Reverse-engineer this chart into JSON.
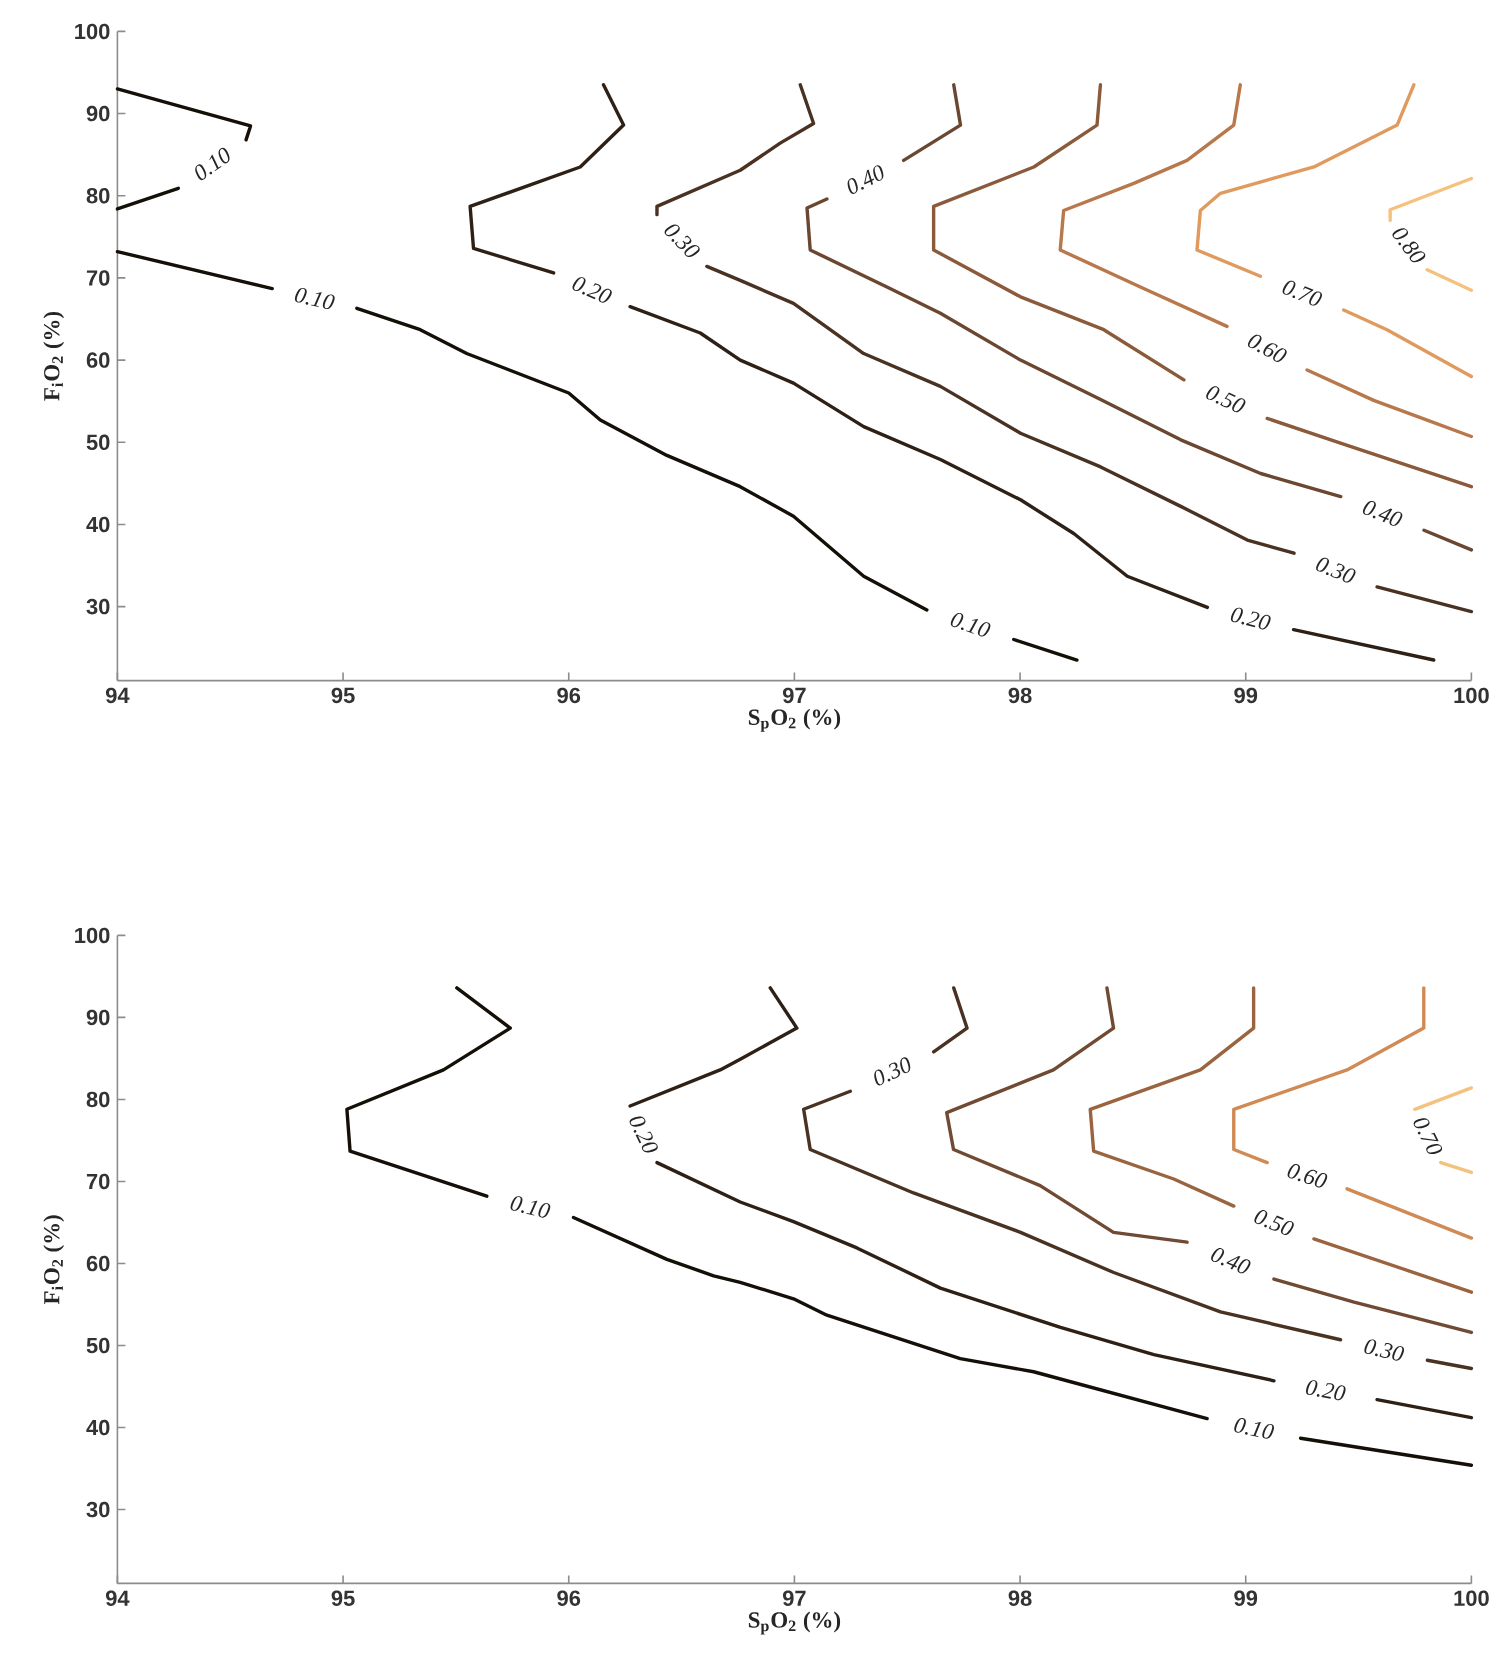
{
  "chart_data": [
    {
      "type": "line",
      "xlabel": "S$_{p}$O$_{2}$ (%)",
      "ylabel": "F$_{i}$O$_{2}$ (%)",
      "xlim": [
        94,
        100
      ],
      "ylim": [
        21,
        100
      ],
      "xticks": [
        94,
        95,
        96,
        97,
        98,
        99,
        100
      ],
      "yticks": [
        30,
        40,
        50,
        60,
        70,
        80,
        90,
        100
      ],
      "series": [
        {
          "color": "#141008",
          "x": [
            94,
            94.59,
            94.57,
            null,
            94.27,
            94
          ],
          "values": [
            93.0,
            88.5,
            86.8,
            null,
            80.9,
            78.4
          ]
        },
        {
          "color": "#141008",
          "x": [
            94,
            94.686,
            null,
            95.061,
            95.342,
            95.548,
            96.0,
            96.14,
            96.435,
            96.76,
            96.996,
            97.307,
            97.587,
            null,
            97.972,
            98.252
          ],
          "values": [
            73.2,
            68.7,
            null,
            66.3,
            63.7,
            60.8,
            56.0,
            52.7,
            48.4,
            44.6,
            41.0,
            33.7,
            29.6,
            null,
            26.0,
            23.5
          ]
        },
        {
          "color": "#2e2015",
          "x": [
            96.154,
            96.243,
            96.051,
            95.563,
            95.578,
            95.933,
            null,
            96.272,
            96.583,
            96.76,
            96.996,
            97.307,
            97.647,
            98.002,
            98.238,
            98.475,
            98.83,
            null,
            99.212,
            99.833
          ],
          "values": [
            93.5,
            88.6,
            83.5,
            78.7,
            73.6,
            70.6,
            null,
            66.5,
            63.3,
            60.0,
            57.2,
            51.9,
            47.9,
            43.0,
            38.9,
            33.7,
            29.9,
            null,
            27.2,
            23.5
          ]
        },
        {
          "color": "#4a3222",
          "x": [
            97.026,
            97.085,
            96.937,
            96.76,
            96.391,
            96.391,
            null,
            96.612,
            96.76,
            96.996,
            97.307,
            97.647,
            98.002,
            98.357,
            98.712,
            99.007,
            99.214,
            null,
            99.582,
            100.0
          ],
          "values": [
            93.5,
            88.8,
            86.4,
            83.1,
            78.7,
            77.7,
            null,
            71.4,
            69.7,
            66.9,
            60.8,
            56.8,
            51.1,
            47.0,
            42.2,
            38.1,
            36.5,
            null,
            32.4,
            29.4
          ]
        },
        {
          "color": "#6b4630",
          "x": [
            97.706,
            97.736,
            97.484,
            null,
            97.144,
            97.056,
            97.07,
            97.41,
            97.647,
            98.002,
            98.357,
            98.712,
            99.066,
            99.421,
            null,
            99.79,
            100.0
          ],
          "values": [
            93.5,
            88.6,
            84.3,
            null,
            79.6,
            78.5,
            73.4,
            68.9,
            65.7,
            60.0,
            55.2,
            50.3,
            46.2,
            43.4,
            null,
            39.3,
            36.9
          ]
        },
        {
          "color": "#8a5a3a",
          "x": [
            98.356,
            98.341,
            98.061,
            97.617,
            97.617,
            98.002,
            98.371,
            98.726,
            null,
            99.095,
            99.42,
            100.0
          ],
          "values": [
            93.5,
            88.6,
            83.5,
            78.7,
            73.4,
            67.7,
            63.7,
            57.6,
            null,
            52.9,
            49.9,
            44.6
          ]
        },
        {
          "color": "#b8784c",
          "x": [
            98.976,
            98.947,
            98.74,
            98.504,
            98.193,
            98.178,
            98.533,
            98.917,
            null,
            99.272,
            99.567,
            99.804,
            100.0
          ],
          "values": [
            93.5,
            88.6,
            84.3,
            81.5,
            78.2,
            73.4,
            68.9,
            64.1,
            null,
            58.8,
            55.1,
            52.7,
            50.7
          ]
        },
        {
          "color": "#e09a5e",
          "x": [
            99.745,
            99.671,
            99.302,
            98.888,
            98.799,
            98.784,
            99.065,
            null,
            99.434,
            99.626,
            100.0
          ],
          "values": [
            93.5,
            88.6,
            83.5,
            80.3,
            78.2,
            73.4,
            70.2,
            null,
            66.1,
            63.7,
            58.0
          ]
        },
        {
          "color": "#f5c27e",
          "x": [
            100.0,
            99.64,
            99.64,
            null,
            99.804,
            100.0
          ],
          "values": [
            82.1,
            78.3,
            77.0,
            null,
            71.0,
            68.5
          ]
        }
      ],
      "annotations": [
        "0.10",
        "0.10",
        "0.10",
        "0.20",
        "0.20",
        "0.30",
        "0.30",
        "0.40",
        "0.40",
        "0.50",
        "0.60",
        "0.70",
        "0.80"
      ]
    },
    {
      "type": "line",
      "xlabel": "S$_{p}$O$_{2}$ (%)",
      "ylabel": "F$_{i}$O$_{2}$ (%)",
      "xlim": [
        94,
        100
      ],
      "ylim": [
        21,
        100
      ],
      "xticks": [
        94,
        95,
        96,
        97,
        98,
        99,
        100
      ],
      "yticks": [
        30,
        40,
        50,
        60,
        70,
        80,
        90,
        100
      ],
      "series": [
        {
          "color": "#141008",
          "x": [
            95.504,
            95.741,
            95.445,
            95.017,
            95.031,
            95.637,
            null,
            96.021,
            96.435,
            96.642,
            96.76,
            96.996,
            97.144,
            97.735,
            98.06,
            98.829,
            null,
            99.243,
            100.0
          ],
          "values": [
            93.6,
            88.7,
            83.6,
            78.8,
            73.7,
            68.2,
            null,
            65.6,
            60.5,
            58.5,
            57.7,
            55.7,
            53.7,
            48.4,
            46.8,
            41.1,
            null,
            38.7,
            35.4
          ]
        },
        {
          "color": "#2e2015",
          "x": [
            96.893,
            97.011,
            96.76,
            96.671,
            96.272,
            null,
            96.391,
            96.76,
            96.996,
            97.277,
            97.647,
            98.179,
            98.593,
            99.125,
            null,
            99.582,
            100.0
          ],
          "values": [
            93.6,
            88.7,
            84.9,
            83.6,
            79.2,
            null,
            72.3,
            67.5,
            65.1,
            61.9,
            57.0,
            52.2,
            48.9,
            45.7,
            null,
            43.4,
            41.2
          ]
        },
        {
          "color": "#4a3222",
          "x": [
            97.706,
            97.765,
            97.617,
            null,
            97.248,
            97.041,
            97.07,
            97.528,
            98.002,
            98.415,
            98.888,
            99.42,
            null,
            99.805,
            100.0
          ],
          "values": [
            93.6,
            88.7,
            85.8,
            null,
            81.0,
            78.8,
            73.9,
            68.6,
            63.8,
            58.9,
            54.1,
            50.7,
            null,
            48.2,
            47.2
          ]
        },
        {
          "color": "#704a32",
          "x": [
            98.385,
            98.414,
            98.148,
            97.675,
            97.705,
            98.089,
            98.414,
            98.74,
            null,
            99.125,
            99.48,
            100.0
          ],
          "values": [
            93.6,
            88.7,
            83.6,
            78.4,
            73.9,
            69.5,
            63.8,
            62.6,
            null,
            58.1,
            55.3,
            51.6
          ]
        },
        {
          "color": "#9a6440",
          "x": [
            99.035,
            99.035,
            98.799,
            98.311,
            98.326,
            98.681,
            98.947,
            null,
            99.302,
            99.745,
            100.0
          ],
          "values": [
            93.6,
            88.7,
            83.6,
            78.8,
            73.7,
            70.3,
            67.0,
            null,
            63.0,
            58.9,
            56.5
          ]
        },
        {
          "color": "#d08a55",
          "x": [
            99.789,
            99.789,
            99.449,
            98.947,
            98.947,
            99.095,
            null,
            99.449,
            100.0
          ],
          "values": [
            93.6,
            88.7,
            83.6,
            78.8,
            73.9,
            72.3,
            null,
            69.1,
            63.1
          ]
        },
        {
          "color": "#f5c27e",
          "x": [
            100.0,
            99.749,
            null,
            99.864,
            100.0
          ],
          "values": [
            81.4,
            78.8,
            null,
            72.3,
            71.1
          ]
        }
      ],
      "annotations": [
        "0.10",
        "0.10",
        "0.20",
        "0.20",
        "0.30",
        "0.30",
        "0.40",
        "0.50",
        "0.60",
        "0.70"
      ]
    }
  ]
}
